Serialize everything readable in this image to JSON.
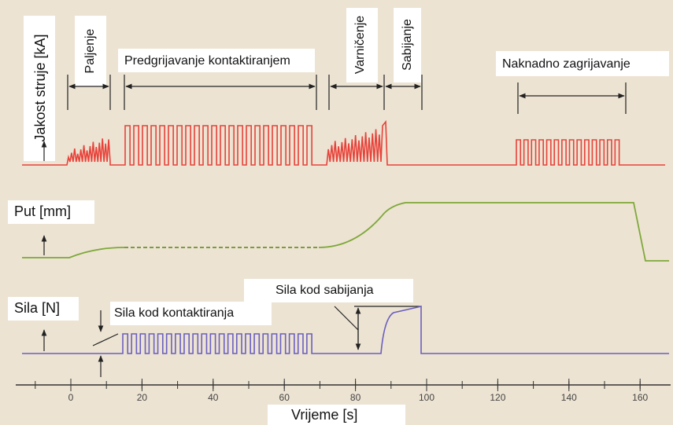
{
  "labels": {
    "current": "Jakost struje [kA]",
    "ignition": "Paljenje",
    "preheat": "Predgrijavanje kontaktiranjem",
    "flashing": "Varničenje",
    "upsetting": "Sabijanje",
    "postheat": "Naknadno zagrijavanje",
    "displacement": "Put [mm]",
    "force": "Sila [N]",
    "contact_force": "Sila kod kontaktiranja",
    "upset_force": "Sila kod sabijanja",
    "time": "Vrijeme [s]"
  },
  "time_axis": {
    "ticks": [
      0,
      20,
      40,
      60,
      80,
      100,
      120,
      140,
      160
    ]
  }
}
